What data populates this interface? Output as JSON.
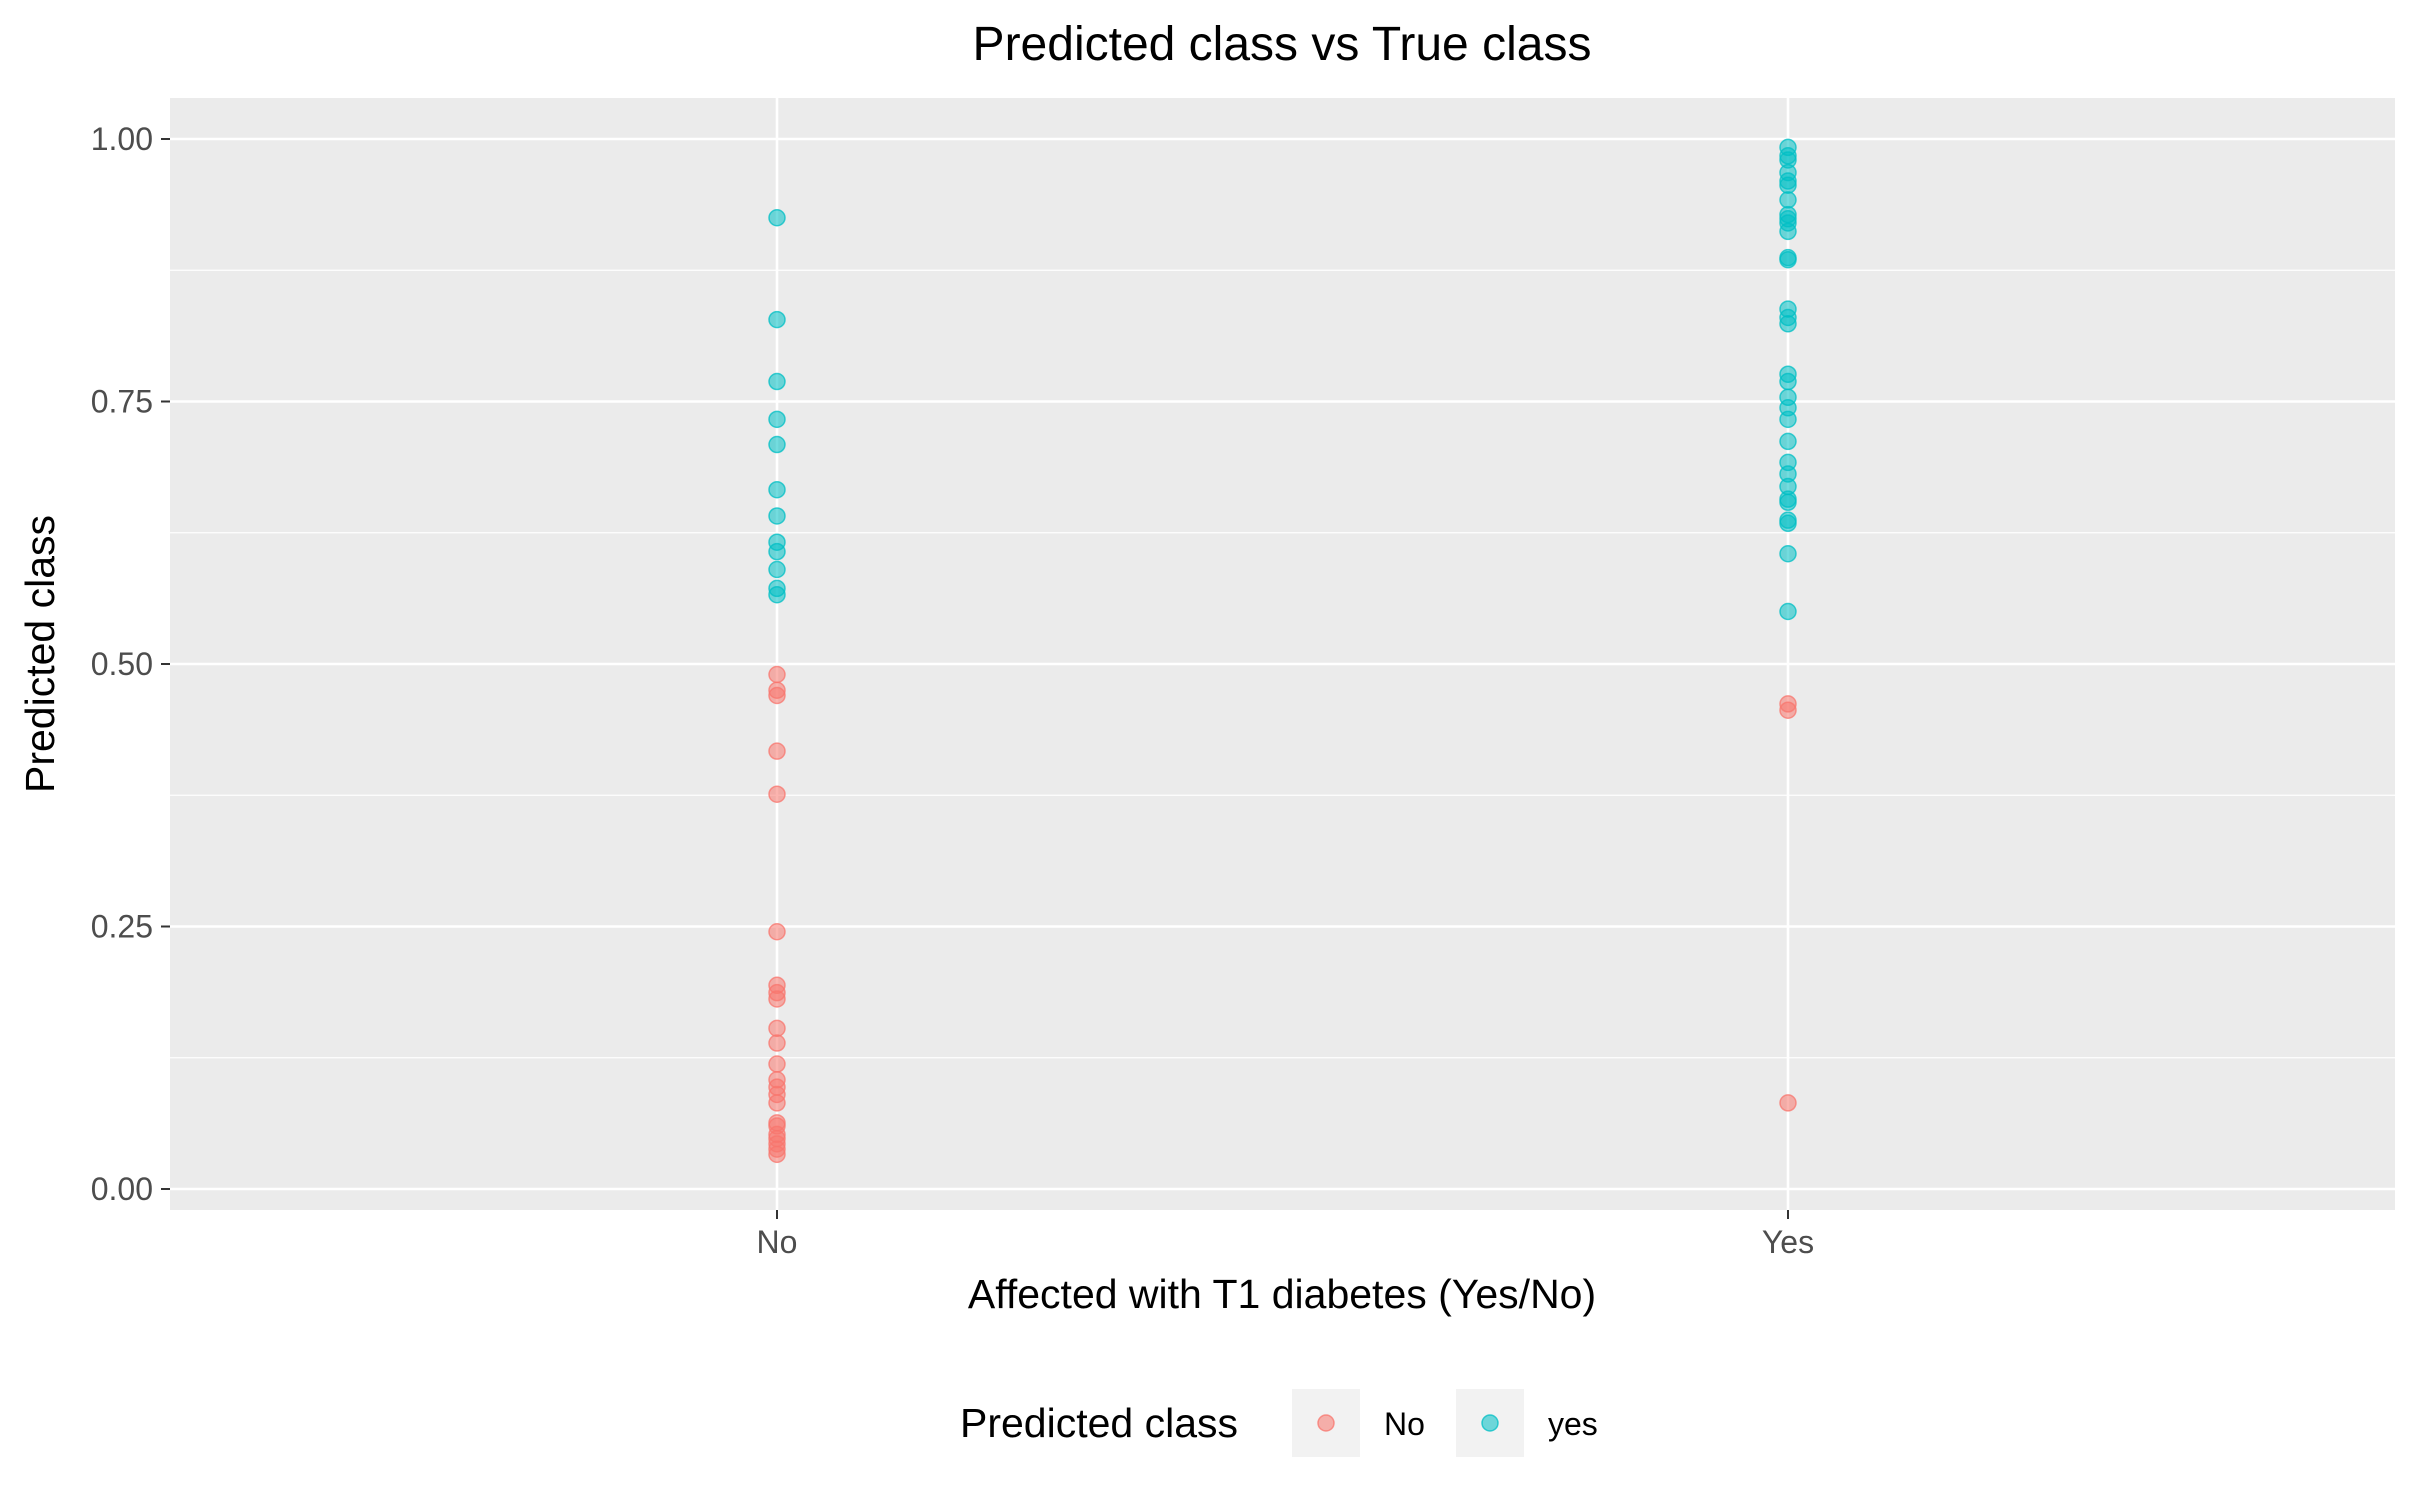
{
  "chart_data": {
    "type": "scatter",
    "title": "Predicted class vs True class",
    "xlabel": "Affected with T1 diabetes (Yes/No)",
    "ylabel": "Predicted class",
    "categories": [
      "No",
      "Yes"
    ],
    "ylim": [
      -0.04,
      1.04
    ],
    "y_ticks": [
      "0.00",
      "0.25",
      "0.50",
      "0.75",
      "1.00"
    ],
    "y_tick_values": [
      0,
      0.25,
      0.5,
      0.75,
      1
    ],
    "grid": true,
    "legend": {
      "title": "Predicted class",
      "position": "bottom",
      "entries": [
        "No",
        "yes"
      ]
    },
    "series": [
      {
        "name": "No",
        "color": "#F8766D",
        "points": [
          {
            "x": "No",
            "y": 0.49
          },
          {
            "x": "No",
            "y": 0.475
          },
          {
            "x": "No",
            "y": 0.47
          },
          {
            "x": "No",
            "y": 0.417
          },
          {
            "x": "No",
            "y": 0.376
          },
          {
            "x": "No",
            "y": 0.245
          },
          {
            "x": "No",
            "y": 0.194
          },
          {
            "x": "No",
            "y": 0.187
          },
          {
            "x": "No",
            "y": 0.181
          },
          {
            "x": "No",
            "y": 0.153
          },
          {
            "x": "No",
            "y": 0.139
          },
          {
            "x": "No",
            "y": 0.119
          },
          {
            "x": "No",
            "y": 0.104
          },
          {
            "x": "No",
            "y": 0.097
          },
          {
            "x": "No",
            "y": 0.09
          },
          {
            "x": "No",
            "y": 0.082
          },
          {
            "x": "No",
            "y": 0.063
          },
          {
            "x": "No",
            "y": 0.06
          },
          {
            "x": "No",
            "y": 0.052
          },
          {
            "x": "No",
            "y": 0.048
          },
          {
            "x": "No",
            "y": 0.043
          },
          {
            "x": "No",
            "y": 0.038
          },
          {
            "x": "No",
            "y": 0.033
          },
          {
            "x": "Yes",
            "y": 0.462
          },
          {
            "x": "Yes",
            "y": 0.456
          },
          {
            "x": "Yes",
            "y": 0.082
          }
        ]
      },
      {
        "name": "yes",
        "color": "#00BFC4",
        "points": [
          {
            "x": "No",
            "y": 0.925
          },
          {
            "x": "No",
            "y": 0.828
          },
          {
            "x": "No",
            "y": 0.769
          },
          {
            "x": "No",
            "y": 0.733
          },
          {
            "x": "No",
            "y": 0.709
          },
          {
            "x": "No",
            "y": 0.666
          },
          {
            "x": "No",
            "y": 0.641
          },
          {
            "x": "No",
            "y": 0.616
          },
          {
            "x": "No",
            "y": 0.607
          },
          {
            "x": "No",
            "y": 0.59
          },
          {
            "x": "No",
            "y": 0.572
          },
          {
            "x": "No",
            "y": 0.566
          },
          {
            "x": "Yes",
            "y": 0.992
          },
          {
            "x": "Yes",
            "y": 0.984
          },
          {
            "x": "Yes",
            "y": 0.98
          },
          {
            "x": "Yes",
            "y": 0.968
          },
          {
            "x": "Yes",
            "y": 0.96
          },
          {
            "x": "Yes",
            "y": 0.956
          },
          {
            "x": "Yes",
            "y": 0.942
          },
          {
            "x": "Yes",
            "y": 0.928
          },
          {
            "x": "Yes",
            "y": 0.924
          },
          {
            "x": "Yes",
            "y": 0.92
          },
          {
            "x": "Yes",
            "y": 0.912
          },
          {
            "x": "Yes",
            "y": 0.887
          },
          {
            "x": "Yes",
            "y": 0.885
          },
          {
            "x": "Yes",
            "y": 0.838
          },
          {
            "x": "Yes",
            "y": 0.83
          },
          {
            "x": "Yes",
            "y": 0.824
          },
          {
            "x": "Yes",
            "y": 0.776
          },
          {
            "x": "Yes",
            "y": 0.769
          },
          {
            "x": "Yes",
            "y": 0.754
          },
          {
            "x": "Yes",
            "y": 0.744
          },
          {
            "x": "Yes",
            "y": 0.733
          },
          {
            "x": "Yes",
            "y": 0.712
          },
          {
            "x": "Yes",
            "y": 0.692
          },
          {
            "x": "Yes",
            "y": 0.681
          },
          {
            "x": "Yes",
            "y": 0.669
          },
          {
            "x": "Yes",
            "y": 0.657
          },
          {
            "x": "Yes",
            "y": 0.654
          },
          {
            "x": "Yes",
            "y": 0.637
          },
          {
            "x": "Yes",
            "y": 0.634
          },
          {
            "x": "Yes",
            "y": 0.605
          },
          {
            "x": "Yes",
            "y": 0.55
          }
        ]
      }
    ]
  }
}
